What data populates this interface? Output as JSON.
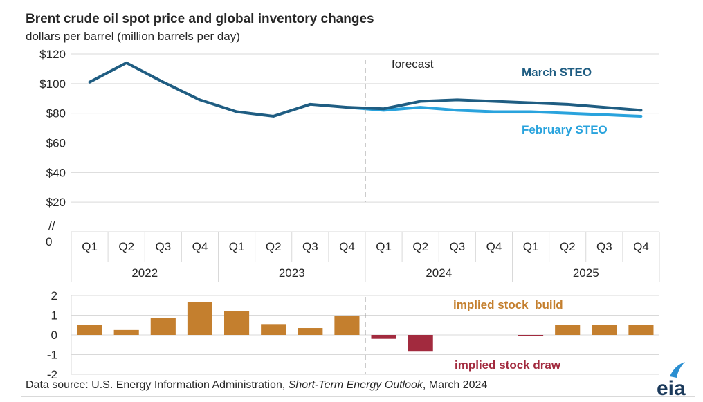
{
  "title": "Brent crude oil spot price and global inventory changes",
  "subtitle": "dollars per barrel (million barrels per day)",
  "source": {
    "prefix": "Data source: U.S. Energy Information Administration, ",
    "publication": "Short-Term Energy Outlook",
    "suffix": ", March 2024"
  },
  "logo_text": "eia",
  "colors": {
    "march": "#1f5d82",
    "february": "#29a3dd",
    "build": "#c47f2e",
    "draw": "#a22a3e",
    "grid": "#d9d9d9",
    "divider": "#999999"
  },
  "chart_data": [
    {
      "type": "line",
      "x": [
        "2022 Q1",
        "2022 Q2",
        "2022 Q3",
        "2022 Q4",
        "2023 Q1",
        "2023 Q2",
        "2023 Q3",
        "2023 Q4",
        "2024 Q1",
        "2024 Q2",
        "2024 Q3",
        "2024 Q4",
        "2025 Q1",
        "2025 Q2",
        "2025 Q3",
        "2025 Q4"
      ],
      "quarters": [
        "Q1",
        "Q2",
        "Q3",
        "Q4",
        "Q1",
        "Q2",
        "Q3",
        "Q4",
        "Q1",
        "Q2",
        "Q3",
        "Q4",
        "Q1",
        "Q2",
        "Q3",
        "Q4"
      ],
      "years": [
        "2022",
        "2023",
        "2024",
        "2025"
      ],
      "series": [
        {
          "name": "March STEO",
          "values": [
            101,
            114,
            101,
            89,
            81,
            78,
            86,
            84,
            83,
            88,
            89,
            88,
            87,
            86,
            84,
            82
          ]
        },
        {
          "name": "February STEO",
          "values": [
            null,
            null,
            null,
            null,
            null,
            null,
            null,
            84,
            82,
            84,
            82,
            81,
            81,
            80,
            79,
            78
          ]
        }
      ],
      "yticks": [
        "$120",
        "$100",
        "$80",
        "$60",
        "$40",
        "$20"
      ],
      "ytick_values": [
        120,
        100,
        80,
        60,
        40,
        20
      ],
      "ybreak_symbol": "//",
      "yzero_label": "0",
      "ylim": [
        0,
        120
      ],
      "annotation": "forecast",
      "grid": true
    },
    {
      "type": "bar",
      "x": [
        "2022 Q1",
        "2022 Q2",
        "2022 Q3",
        "2022 Q4",
        "2023 Q1",
        "2023 Q2",
        "2023 Q3",
        "2023 Q4",
        "2024 Q1",
        "2024 Q2",
        "2024 Q3",
        "2024 Q4",
        "2025 Q1",
        "2025 Q2",
        "2025 Q3",
        "2025 Q4"
      ],
      "values": [
        0.5,
        0.25,
        0.85,
        1.65,
        1.2,
        0.55,
        0.35,
        0.95,
        -0.2,
        -0.85,
        0,
        0,
        -0.05,
        0.5,
        0.5,
        0.5
      ],
      "yticks": [
        "2",
        "1",
        "0",
        "-1",
        "-2"
      ],
      "ytick_values": [
        2,
        1,
        0,
        -1,
        -2
      ],
      "ylim": [
        -2,
        2
      ],
      "annotations": [
        "implied stock  build",
        "implied stock draw"
      ]
    }
  ]
}
